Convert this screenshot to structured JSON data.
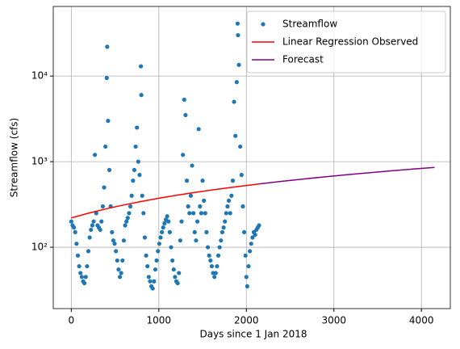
{
  "chart_data": {
    "type": "scatter",
    "xlabel": "Days since 1 Jan 2018",
    "ylabel": "Streamflow (cfs)",
    "xlim": [
      -206,
      4330
    ],
    "ylim": [
      19.2,
      65000
    ],
    "yscale": "log",
    "grid": true,
    "legend": "upper right",
    "xticks": [
      0,
      1000,
      2000,
      3000,
      4000
    ],
    "yticks": [
      {
        "value": 100,
        "label": "10²"
      },
      {
        "value": 1000,
        "label": "10³"
      },
      {
        "value": 10000,
        "label": "10⁴"
      }
    ],
    "series": [
      {
        "name": "Streamflow",
        "type": "scatter",
        "color": "#1f77b4",
        "x": [
          0,
          15,
          30,
          45,
          60,
          75,
          90,
          105,
          120,
          135,
          150,
          165,
          180,
          195,
          210,
          225,
          240,
          255,
          270,
          285,
          300,
          315,
          330,
          345,
          360,
          375,
          390,
          405,
          410,
          420,
          435,
          450,
          465,
          480,
          495,
          510,
          525,
          540,
          555,
          570,
          585,
          600,
          615,
          630,
          645,
          660,
          675,
          690,
          705,
          720,
          735,
          750,
          765,
          780,
          795,
          800,
          810,
          825,
          840,
          855,
          870,
          885,
          900,
          915,
          930,
          945,
          960,
          975,
          990,
          1005,
          1020,
          1035,
          1050,
          1065,
          1080,
          1095,
          1110,
          1125,
          1140,
          1155,
          1170,
          1185,
          1200,
          1215,
          1230,
          1245,
          1260,
          1275,
          1290,
          1305,
          1320,
          1335,
          1350,
          1365,
          1380,
          1395,
          1410,
          1425,
          1440,
          1455,
          1470,
          1485,
          1500,
          1515,
          1530,
          1545,
          1560,
          1575,
          1590,
          1605,
          1620,
          1635,
          1650,
          1665,
          1680,
          1695,
          1710,
          1725,
          1740,
          1755,
          1770,
          1785,
          1800,
          1815,
          1830,
          1845,
          1860,
          1875,
          1890,
          1900,
          1905,
          1915,
          1930,
          1945,
          1960,
          1975,
          1990,
          2000,
          2010,
          2025,
          2040,
          2055,
          2070,
          2085,
          2100,
          2115,
          2130,
          2145
        ],
        "values": [
          200,
          180,
          170,
          150,
          110,
          80,
          60,
          50,
          45,
          40,
          38,
          45,
          60,
          90,
          130,
          160,
          180,
          200,
          1200,
          250,
          180,
          170,
          160,
          200,
          300,
          500,
          1500,
          9500,
          22000,
          3000,
          800,
          300,
          150,
          120,
          110,
          90,
          70,
          55,
          45,
          50,
          70,
          120,
          180,
          200,
          220,
          250,
          300,
          400,
          600,
          800,
          1500,
          2500,
          1000,
          700,
          13000,
          6000,
          400,
          250,
          130,
          80,
          60,
          45,
          40,
          35,
          33,
          40,
          55,
          70,
          90,
          110,
          130,
          150,
          170,
          190,
          210,
          230,
          200,
          150,
          100,
          70,
          55,
          45,
          40,
          38,
          50,
          120,
          200,
          1200,
          5300,
          3500,
          600,
          300,
          250,
          400,
          900,
          250,
          150,
          120,
          200,
          2400,
          300,
          250,
          600,
          350,
          250,
          150,
          100,
          80,
          70,
          60,
          50,
          45,
          50,
          60,
          80,
          100,
          120,
          150,
          170,
          200,
          250,
          300,
          350,
          250,
          400,
          600,
          5000,
          2000,
          8500,
          41000,
          30000,
          13500,
          1500,
          700,
          300,
          150,
          80,
          45,
          35,
          60,
          90,
          110,
          130,
          150,
          140,
          160,
          170,
          180
        ]
      },
      {
        "name": "Linear Regression Observed",
        "type": "line",
        "color": "#ff0000",
        "x": [
          0,
          200,
          400,
          600,
          800,
          1000,
          1200,
          1400,
          1600,
          1800,
          2000,
          2150
        ],
        "values": [
          220,
          250.7,
          281.4,
          312.1,
          342.8,
          373.5,
          404.2,
          434.9,
          465.6,
          496.3,
          527,
          550
        ]
      },
      {
        "name": "Forecast",
        "type": "line",
        "color": "#800080",
        "x": [
          2150,
          2400,
          2650,
          2900,
          3150,
          3400,
          3650,
          3900,
          4150
        ],
        "values": [
          550,
          588.4,
          626.8,
          665.2,
          703.5,
          741.9,
          780.3,
          818.7,
          857
        ]
      }
    ]
  }
}
